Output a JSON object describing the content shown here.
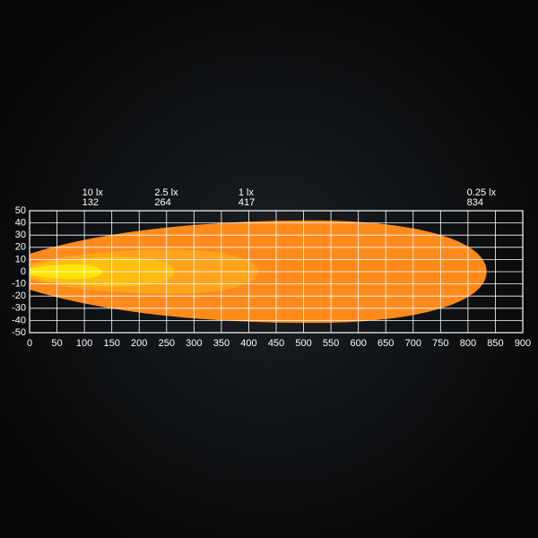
{
  "chart_data": {
    "type": "isolux",
    "xlim": [
      0,
      900
    ],
    "xticks": [
      0,
      50,
      100,
      150,
      200,
      250,
      300,
      350,
      400,
      450,
      500,
      550,
      600,
      650,
      700,
      750,
      800,
      850,
      900
    ],
    "ylim": [
      -50,
      50
    ],
    "yticks": [
      -50,
      -40,
      -30,
      -20,
      -10,
      0,
      10,
      20,
      30,
      40,
      50
    ],
    "grid": true,
    "contours": [
      {
        "name": "0.25 lx",
        "reach": 834,
        "half_width": 42,
        "color": "#ff8a1c"
      },
      {
        "name": "1 lx",
        "reach": 417,
        "half_width": 18,
        "color": "#ffa41c"
      },
      {
        "name": "2.5 lx",
        "reach": 264,
        "half_width": 12,
        "color": "#ffbd10"
      },
      {
        "name": "10 lx",
        "reach": 132,
        "half_width": 6,
        "color": "#ffe400"
      }
    ]
  }
}
